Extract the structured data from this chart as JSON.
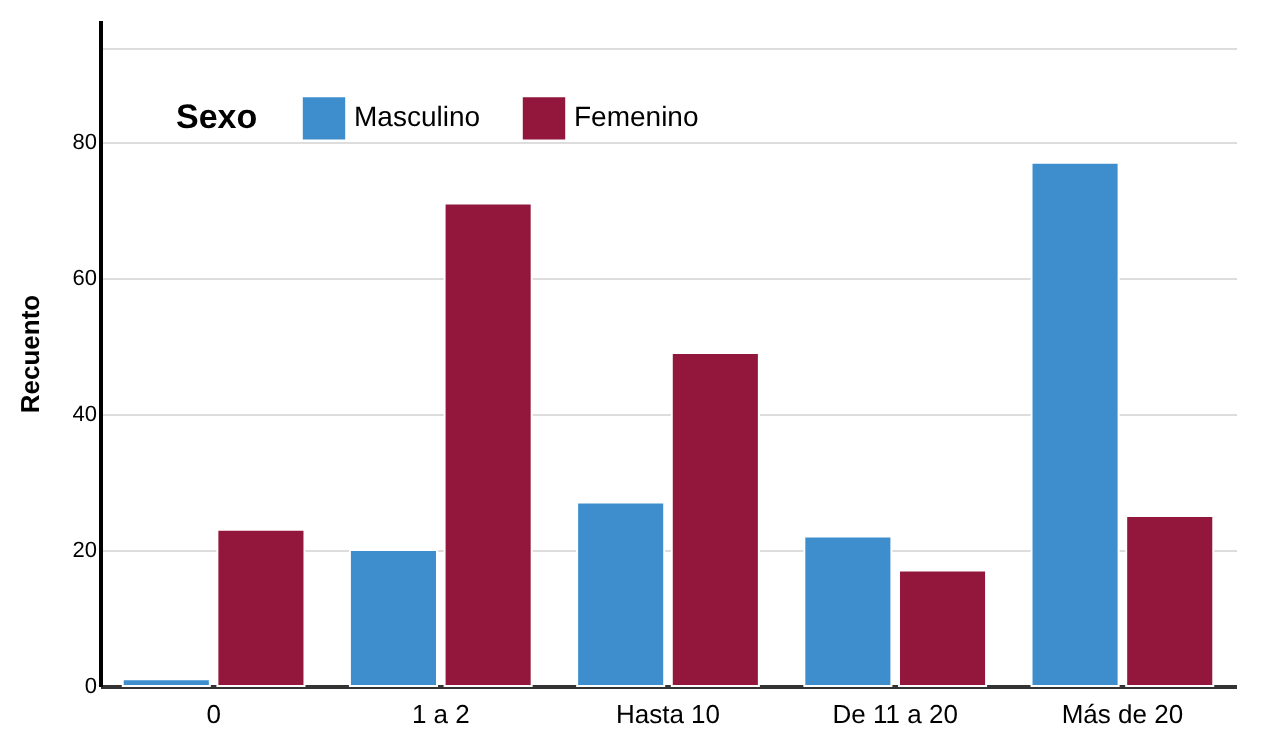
{
  "chart_data": {
    "type": "bar",
    "ylabel": "Recuento",
    "legend_title": "Sexo",
    "categories": [
      "0",
      "1 a 2",
      "Hasta 10",
      "De 11 a 20",
      "Más de 20"
    ],
    "series": [
      {
        "name": "Masculino",
        "color": "#3e8ecd",
        "values": [
          1,
          20,
          27,
          22,
          77
        ]
      },
      {
        "name": "Femenino",
        "color": "#93173c",
        "values": [
          23,
          71,
          49,
          17,
          25
        ]
      }
    ],
    "ylim": [
      0,
      98
    ],
    "yticks": [
      0,
      20,
      40,
      60,
      80,
      {
        "value": 94,
        "label": null
      }
    ],
    "grid": "y",
    "legend": "top left"
  }
}
